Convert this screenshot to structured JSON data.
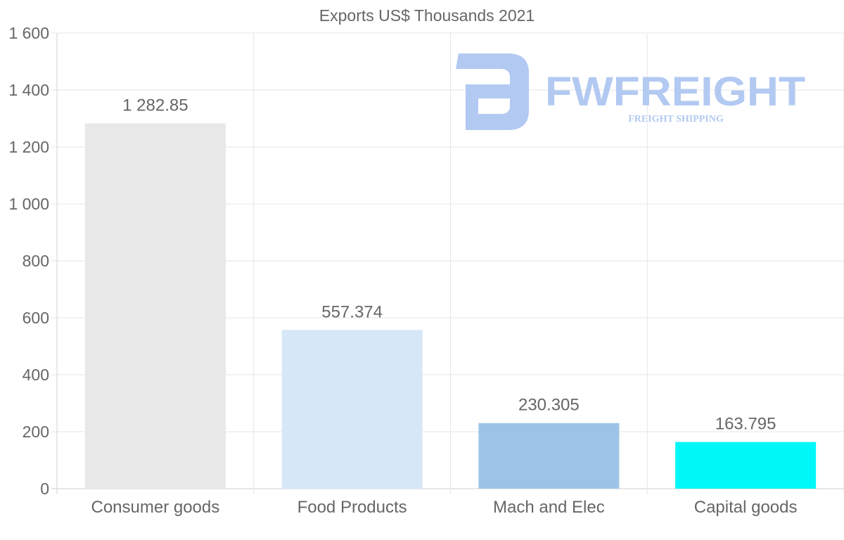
{
  "chart_data": {
    "type": "bar",
    "title": "Exports US$ Thousands 2021",
    "categories": [
      "Consumer goods",
      "Food Products",
      "Mach and Elec",
      "Capital goods"
    ],
    "values": [
      1282.85,
      557.374,
      230.305,
      163.795
    ],
    "value_labels": [
      "1 282.85",
      "557.374",
      "230.305",
      "163.795"
    ],
    "bar_colors": [
      "#e8e8e8",
      "#d6e8f8",
      "#9dc4e6",
      "#00f8f8"
    ],
    "ylim": [
      0,
      1600
    ],
    "yticks": [
      0,
      200,
      400,
      600,
      800,
      1000,
      1200,
      1400,
      1600
    ],
    "ytick_labels": [
      "0",
      "200",
      "400",
      "600",
      "800",
      "1 000",
      "1 200",
      "1 400",
      "1 600"
    ],
    "xlabel": "",
    "ylabel": "",
    "grid": true
  },
  "watermark": {
    "brand": "FWFREIGHT",
    "tagline": "FREIGHT SHIPPING",
    "color": "#b2c9f2"
  }
}
